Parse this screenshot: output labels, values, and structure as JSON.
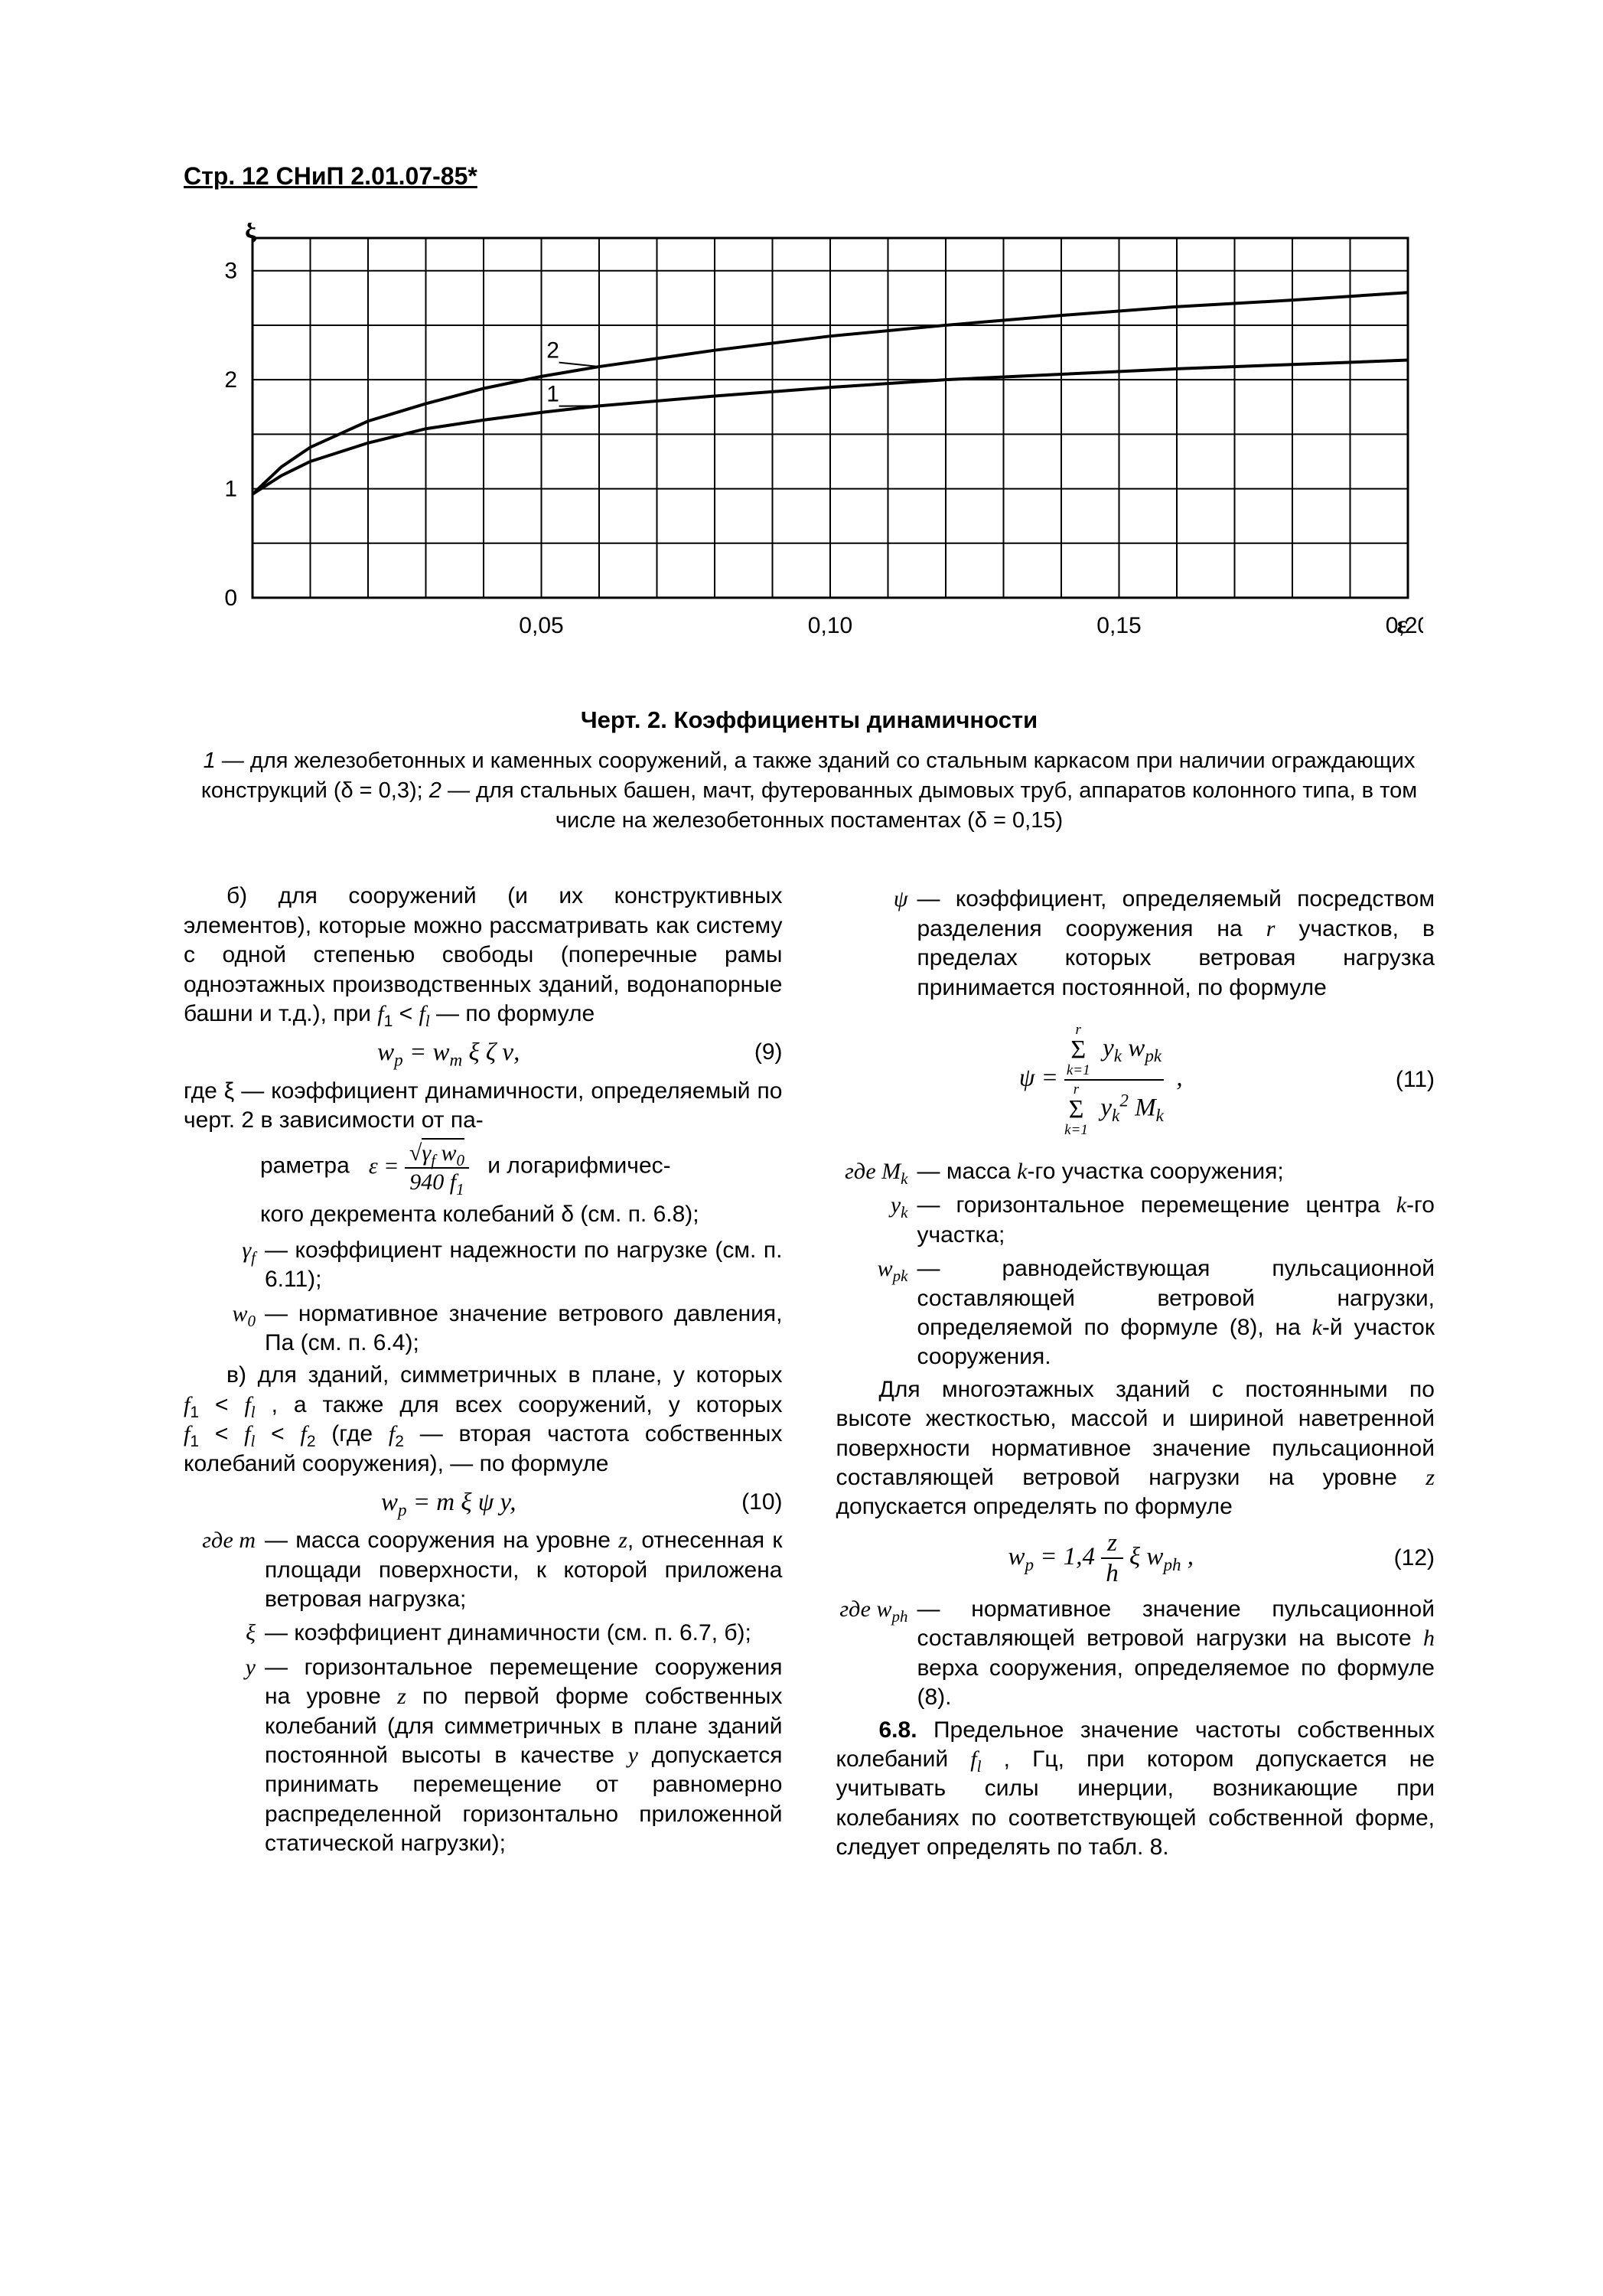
{
  "header": "Стр. 12 СНиП 2.01.07-85*",
  "chart": {
    "type": "line",
    "y_axis_label": "ξ",
    "x_axis_label": "ε",
    "x_ticks": [
      "0,05",
      "0,10",
      "0,15",
      "0,20"
    ],
    "y_ticks": [
      "0",
      "1",
      "2",
      "3"
    ],
    "xlim": [
      0,
      0.2
    ],
    "ylim": [
      0,
      3.3
    ],
    "grid_x_minor_step": 0.01,
    "grid_y_step": 0.5,
    "background_color": "#ffffff",
    "grid_color": "#000000",
    "grid_stroke": 2,
    "axis_stroke": 3,
    "label_fontsize": 30,
    "axis_font": "italic serif",
    "series": [
      {
        "name": "1",
        "label_x": 0.052,
        "label_y": 1.8,
        "color": "#000000",
        "stroke": 4,
        "points": [
          [
            0.0,
            0.95
          ],
          [
            0.005,
            1.12
          ],
          [
            0.01,
            1.25
          ],
          [
            0.02,
            1.42
          ],
          [
            0.03,
            1.55
          ],
          [
            0.04,
            1.63
          ],
          [
            0.05,
            1.7
          ],
          [
            0.06,
            1.76
          ],
          [
            0.08,
            1.85
          ],
          [
            0.1,
            1.93
          ],
          [
            0.12,
            2.0
          ],
          [
            0.14,
            2.05
          ],
          [
            0.16,
            2.1
          ],
          [
            0.18,
            2.14
          ],
          [
            0.2,
            2.18
          ]
        ]
      },
      {
        "name": "2",
        "label_x": 0.052,
        "label_y": 2.2,
        "color": "#000000",
        "stroke": 4,
        "points": [
          [
            0.0,
            0.95
          ],
          [
            0.005,
            1.2
          ],
          [
            0.01,
            1.38
          ],
          [
            0.02,
            1.62
          ],
          [
            0.03,
            1.78
          ],
          [
            0.04,
            1.92
          ],
          [
            0.05,
            2.03
          ],
          [
            0.06,
            2.12
          ],
          [
            0.08,
            2.27
          ],
          [
            0.1,
            2.4
          ],
          [
            0.12,
            2.5
          ],
          [
            0.14,
            2.59
          ],
          [
            0.16,
            2.67
          ],
          [
            0.18,
            2.73
          ],
          [
            0.2,
            2.8
          ]
        ]
      }
    ]
  },
  "caption_title": "Черт. 2. Коэффициенты динамичности",
  "caption_body_html": "<i>1</i> — для железобетонных и каменных сооружений, а также зданий со стальным каркасом при наличии ограждающих конструкций (δ = 0,3); <i>2</i> — для стальных башен, мачт, футерованных дымовых труб, аппаратов колонного типа, в том числе на железобетонных постаментах (δ = 0,15)",
  "left": {
    "para_b": "б) для сооружений (и их конструктивных элементов), которые можно рассматривать как систему с одной степенью свободы (поперечные рамы одноэтажных производственных зданий, водонапорные башни и т.д.), при <span class='serif-i'>f</span><sub>1</sub>&nbsp;&lt;&nbsp;<span class='serif-i'>f<sub>l</sub></span> — по формуле",
    "formula9": "w<sub>p</sub> = w<sub>m</sub> ξ ζ ν,",
    "num9": "(9)",
    "where9_intro": "где ξ — коэффициент динамичности, определяемый по черт. 2 в зависимости от па-",
    "param_eps_lead": "раметра&nbsp;&nbsp;",
    "param_eps_tail": "&nbsp;&nbsp;и логарифмичес-",
    "param_decrement": "кого декремента колебаний δ (см. п. 6.8);",
    "defs9": [
      {
        "sym": "γ<sub>f</sub>",
        "txt": "— коэффициент надежности по нагрузке (см. п. 6.11);"
      },
      {
        "sym": "w<sub>0</sub>",
        "txt": "— нормативное значение ветрового давления, Па (см. п. 6.4);"
      }
    ],
    "para_c": "в) для зданий, симметричных в плане, у которых <span class='serif-i'>f</span><sub>1</sub>&nbsp;&lt;&nbsp;<span class='serif-i'>f<sub>l</sub></span> , а также для всех сооружений, у которых <span class='serif-i'>f</span><sub>1</sub>&nbsp;&lt;&nbsp;<span class='serif-i'>f<sub>l</sub></span>&nbsp;&lt;&nbsp;<span class='serif-i'>f</span><sub>2</sub> (где <span class='serif-i'>f</span><sub>2</sub> — вторая частота собственных колебаний сооружения), — по формуле",
    "formula10": "w<sub>p</sub> = m ξ ψ y,",
    "num10": "(10)",
    "defs10": [
      {
        "sym": "где&nbsp;<span class='serif-i'>m</span>",
        "txt": "— масса сооружения на уровне <span class='serif-i'>z</span>, отнесенная к площади поверхности, к которой приложена ветровая нагрузка;"
      },
      {
        "sym": "ξ",
        "txt": "— коэффициент динамичности (см. п. 6.7, б);"
      },
      {
        "sym": "<span class='serif-i'>y</span>",
        "txt": "— горизонтальное перемещение сооружения на уровне <span class='serif-i'>z</span> по первой форме собственных колебаний (для симметричных в плане зданий постоянной высоты в качестве <span class='serif-i'>y</span> допускается принимать перемещение от равномерно распределенной горизонтально приложенной статической нагрузки);"
      }
    ]
  },
  "right": {
    "defs_psi": [
      {
        "sym": "ψ",
        "txt": "— коэффициент, определяемый посредством разделения сооружения на <span class='serif-i'>r</span> участков, в пределах которых ветровая нагрузка принимается постоянной, по формуле"
      }
    ],
    "num11": "(11)",
    "defs11": [
      {
        "sym": "где&nbsp;<span class='serif-i'>M<sub>k</sub></span>",
        "txt": "— масса <span class='serif-i'>k</span>-го участка сооружения;"
      },
      {
        "sym": "<span class='serif-i'>y<sub>k</sub></span>",
        "txt": "— горизонтальное перемещение центра <span class='serif-i'>k</span>-го участка;"
      },
      {
        "sym": "<span class='serif-i'>w<sub>pk</sub></span>",
        "txt": "— равнодействующая пульсационной составляющей ветровой нагрузки, определяемой по формуле (8), на <span class='serif-i'>k</span>-й участок сооружения."
      }
    ],
    "para_multi": "Для многоэтажных зданий с постоянными по высоте жесткостью, массой и шириной наветренной поверхности нормативное значение пульсационной составляющей ветровой нагрузки на уровне <span class='serif-i'>z</span> допускается определять по формуле",
    "formula12": "w<sub>p</sub> = 1,4 <span class='frac'><span class='top'>z</span><span class='bot'>h</span></span> ξ w<sub>ph</sub> ,",
    "num12": "(12)",
    "defs12": [
      {
        "sym": "где&nbsp;<span class='serif-i'>w<sub>ph</sub></span>",
        "txt": "— нормативное значение пульсационной составляющей ветровой нагрузки на высоте <span class='serif-i'>h</span> верха сооружения, определяемое по формуле (8)."
      }
    ],
    "para_68": "<b>6.8.</b> Предельное значение частоты собственных колебаний <span class='serif-i'>f<sub>l</sub></span> , Гц, при котором допускается не учитывать силы инерции, возникающие при колебаниях по соответствующей собственной форме, следует определять по табл. 8."
  }
}
